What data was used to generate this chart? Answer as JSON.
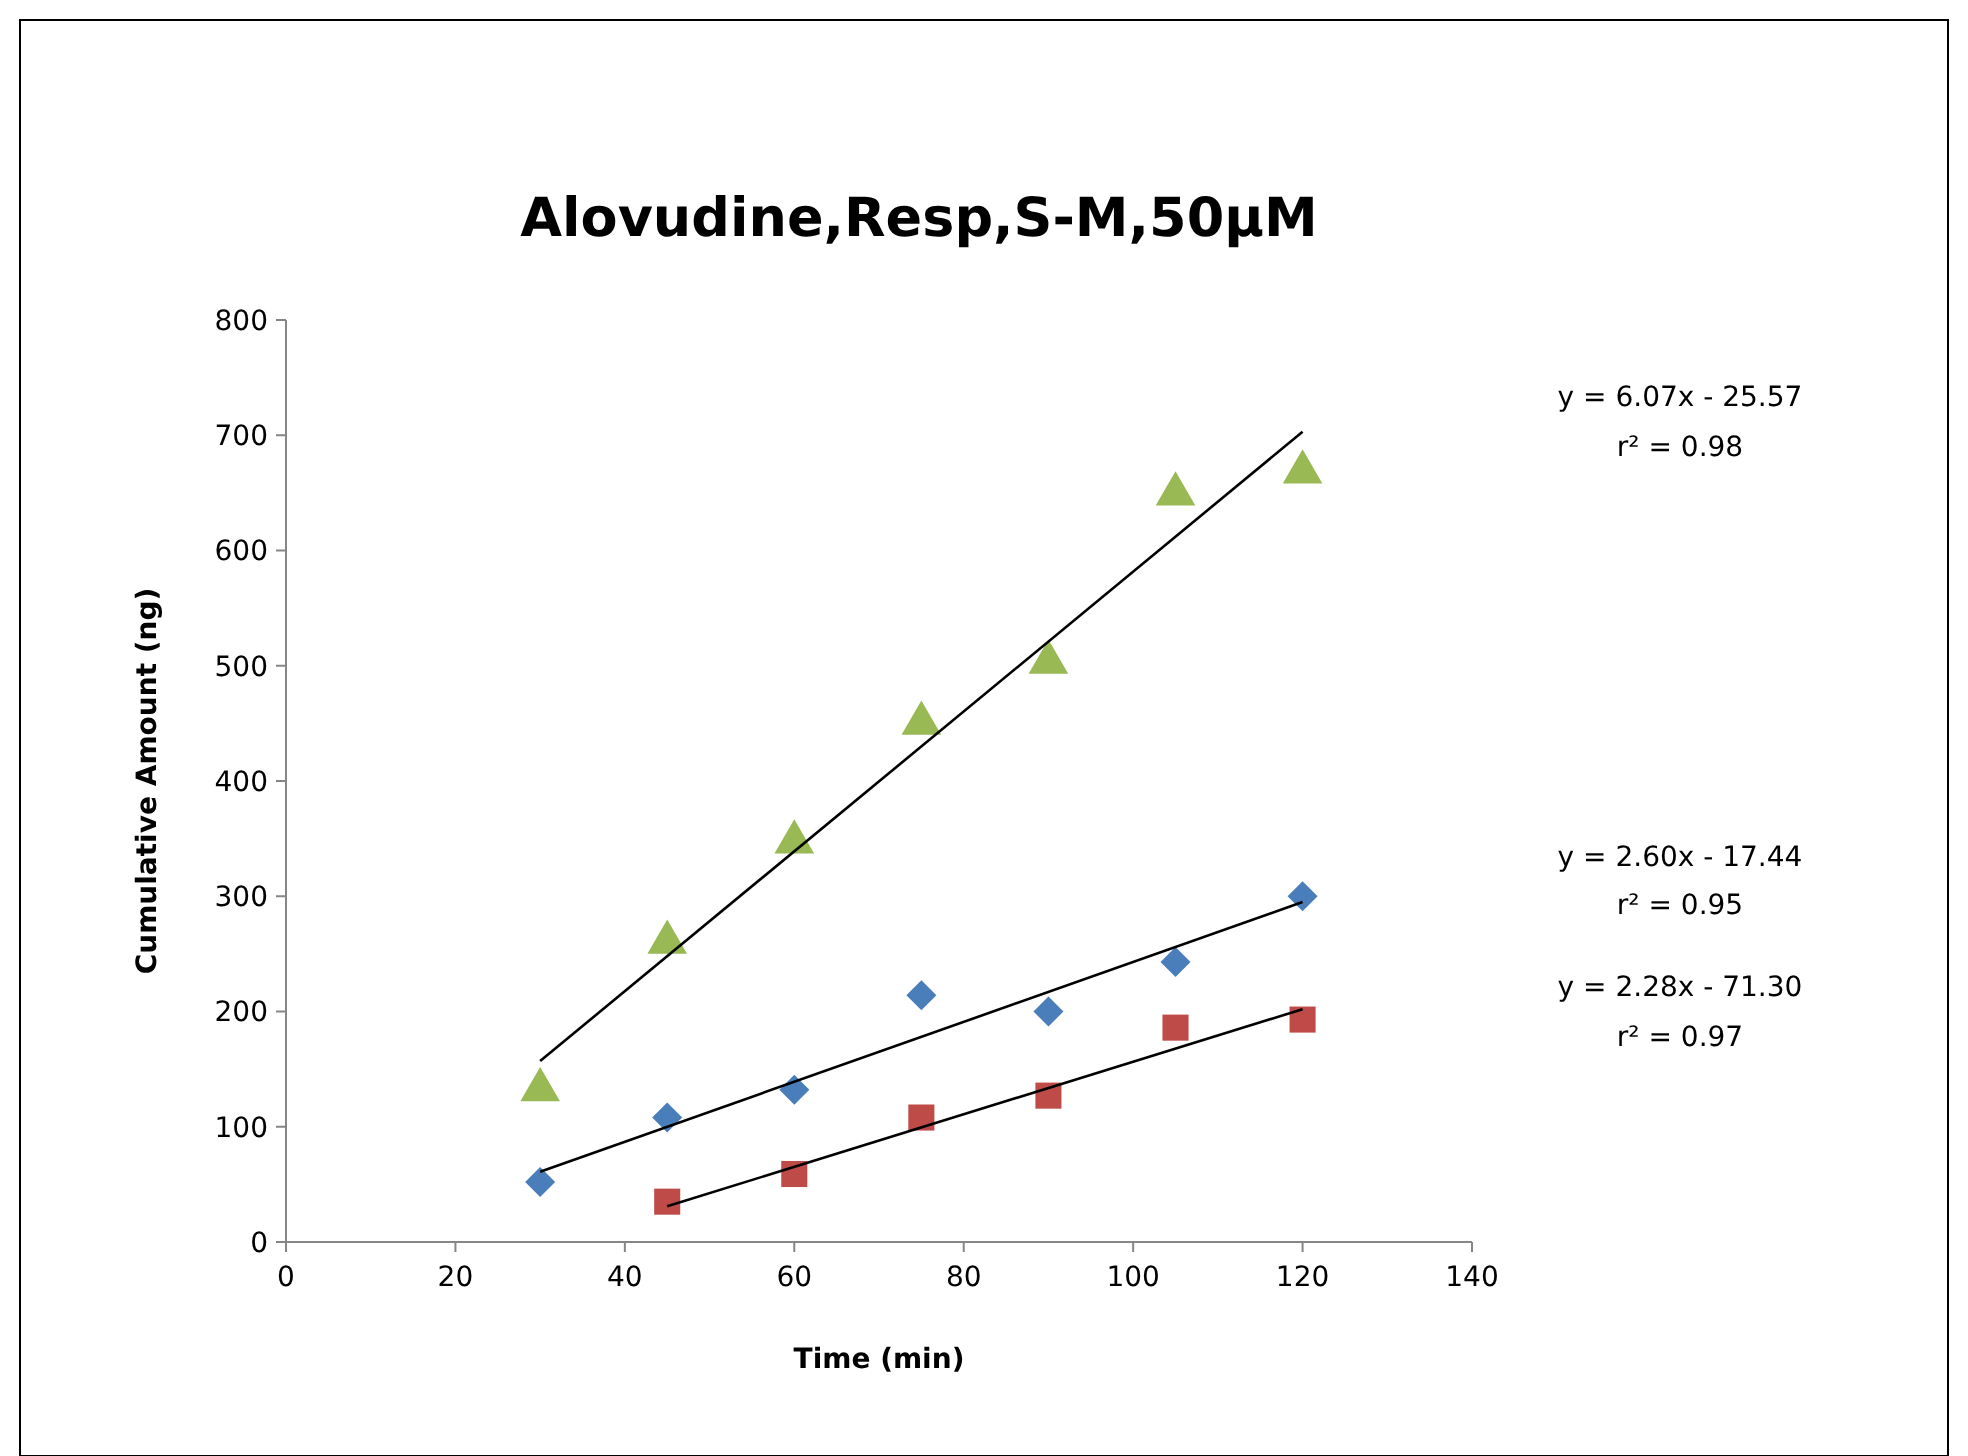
{
  "chart_data": {
    "type": "scatter",
    "title": "Alovudine,Resp,S-M,50μM",
    "xlabel": "Time (min)",
    "ylabel": "Cumulative Amount (ng)",
    "xlim": [
      0,
      140
    ],
    "xticks": [
      0,
      20,
      40,
      60,
      80,
      100,
      120,
      140
    ],
    "ylim": [
      0,
      800
    ],
    "yticks": [
      0,
      100,
      200,
      300,
      400,
      500,
      600,
      700,
      800
    ],
    "grid": false,
    "series": [
      {
        "color": "#4a7ebb",
        "marker": "diamond",
        "x": [
          30,
          45,
          60,
          75,
          90,
          105,
          120
        ],
        "values": [
          52,
          108,
          132,
          214,
          200,
          243,
          300
        ]
      },
      {
        "color": "#be4b48",
        "marker": "square",
        "x": [
          45,
          60,
          75,
          90,
          105,
          120
        ],
        "values": [
          35,
          59,
          108,
          127,
          186,
          193
        ]
      },
      {
        "color": "#98b954",
        "marker": "triangle",
        "x": [
          30,
          45,
          60,
          75,
          90,
          105,
          120
        ],
        "values": [
          132,
          260,
          347,
          450,
          503,
          649,
          668
        ]
      },
      {
        "type": "line",
        "color": "#000000",
        "x": [
          30,
          120
        ],
        "values": [
          157,
          703
        ]
      },
      {
        "type": "line",
        "color": "#000000",
        "x": [
          30,
          120
        ],
        "values": [
          61,
          295
        ]
      },
      {
        "type": "line",
        "color": "#000000",
        "x": [
          45,
          120
        ],
        "values": [
          31,
          202
        ]
      }
    ],
    "annotations": [
      "y = 6.07x - 25.57",
      "r² = 0.98",
      "y = 2.60x - 17.44",
      "r² = 0.95",
      "y = 2.28x - 71.30",
      "r² = 0.97"
    ]
  }
}
